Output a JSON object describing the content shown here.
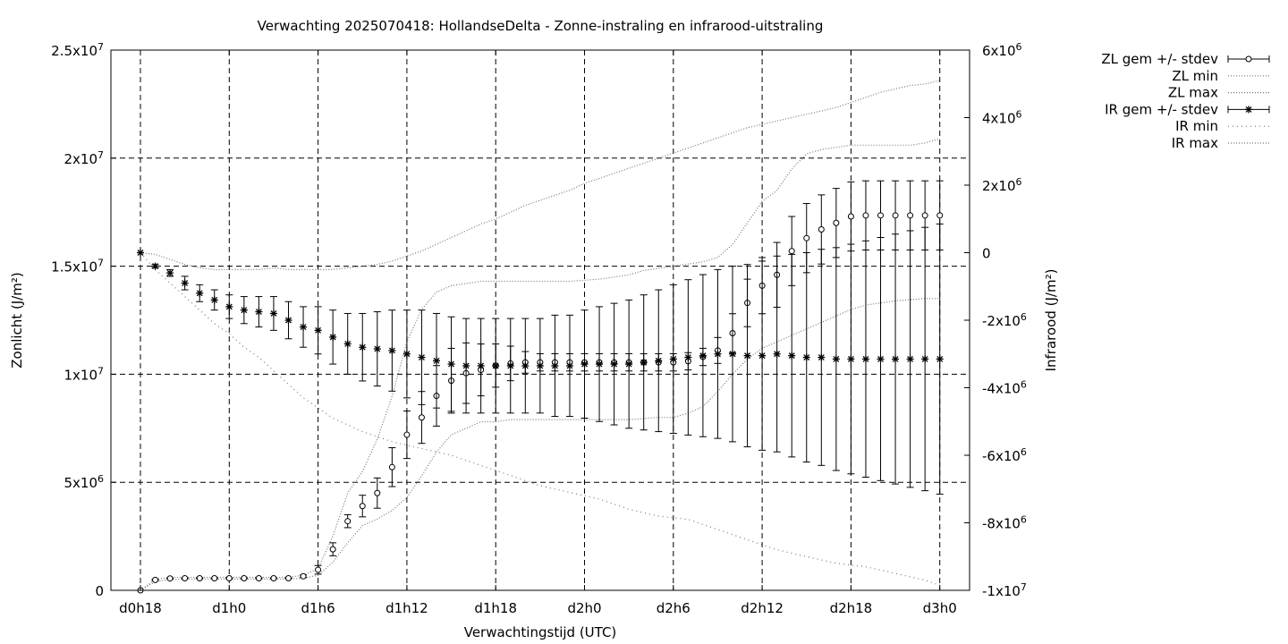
{
  "chart_data": {
    "type": "line",
    "title": "Verwachting 2025070418: HollandseDelta - Zonne-instraling en infrarood-uitstraling",
    "xlabel": "Verwachtingstijd (UTC)",
    "ylabel": "Zonlicht (J/m²)",
    "y2label": "Infrarood (J/m²)",
    "x_unit": "hours since d0h18",
    "x_range": [
      0,
      56
    ],
    "x_ticks": [
      {
        "x": 0,
        "label": "d0h18"
      },
      {
        "x": 6,
        "label": "d1h0"
      },
      {
        "x": 12,
        "label": "d1h6"
      },
      {
        "x": 18,
        "label": "d1h12"
      },
      {
        "x": 24,
        "label": "d1h18"
      },
      {
        "x": 30,
        "label": "d2h0"
      },
      {
        "x": 36,
        "label": "d2h6"
      },
      {
        "x": 42,
        "label": "d2h12"
      },
      {
        "x": 48,
        "label": "d2h18"
      },
      {
        "x": 54,
        "label": "d3h0"
      }
    ],
    "ylim": [
      0,
      25000000
    ],
    "y2lim": [
      -10000000,
      6000000
    ],
    "y_ticks": [
      {
        "v": 0,
        "m": "0",
        "e": ""
      },
      {
        "v": 5000000,
        "m": "5x10",
        "e": "6"
      },
      {
        "v": 10000000,
        "m": "1x10",
        "e": "7"
      },
      {
        "v": 15000000,
        "m": "1.5x10",
        "e": "7"
      },
      {
        "v": 20000000,
        "m": "2x10",
        "e": "7"
      },
      {
        "v": 25000000,
        "m": "2.5x10",
        "e": "7"
      }
    ],
    "y2_ticks": [
      {
        "v": -10000000,
        "m": "-1x10",
        "e": "7"
      },
      {
        "v": -8000000,
        "m": "-8x10",
        "e": "6"
      },
      {
        "v": -6000000,
        "m": "-6x10",
        "e": "6"
      },
      {
        "v": -4000000,
        "m": "-4x10",
        "e": "6"
      },
      {
        "v": -2000000,
        "m": "-2x10",
        "e": "6"
      },
      {
        "v": 0,
        "m": "0",
        "e": ""
      },
      {
        "v": 2000000,
        "m": "2x10",
        "e": "6"
      },
      {
        "v": 4000000,
        "m": "4x10",
        "e": "6"
      },
      {
        "v": 6000000,
        "m": "6x10",
        "e": "6"
      }
    ],
    "grid": true,
    "legend": "top-right",
    "legend_entries": [
      "ZL gem +/- stdev",
      "ZL min",
      "ZL max",
      "IR gem +/- stdev",
      "IR min",
      "IR max"
    ],
    "x": [
      0,
      1,
      2,
      3,
      4,
      5,
      6,
      7,
      8,
      9,
      10,
      11,
      12,
      13,
      14,
      15,
      16,
      17,
      18,
      19,
      20,
      21,
      22,
      23,
      24,
      25,
      26,
      27,
      28,
      29,
      30,
      31,
      32,
      33,
      34,
      35,
      36,
      37,
      38,
      39,
      40,
      41,
      42,
      43,
      44,
      45,
      46,
      47,
      48,
      49,
      50,
      51,
      52,
      53,
      54
    ],
    "zl_mean": [
      0,
      480000,
      550000,
      560000,
      560000,
      560000,
      560000,
      560000,
      560000,
      560000,
      560000,
      650000,
      950000,
      1900000,
      3200000,
      3900000,
      4500000,
      5700000,
      7200000,
      8000000,
      9000000,
      9700000,
      10050000,
      10200000,
      10400000,
      10500000,
      10550000,
      10550000,
      10550000,
      10550000,
      10550000,
      10550000,
      10550000,
      10550000,
      10550000,
      10550000,
      10550000,
      10600000,
      10800000,
      11100000,
      11900000,
      13300000,
      14100000,
      14600000,
      15700000,
      16300000,
      16700000,
      17000000,
      17300000,
      17350000,
      17350000,
      17350000,
      17350000,
      17350000,
      17350000
    ],
    "zl_sd": [
      0,
      30000,
      20000,
      20000,
      20000,
      20000,
      20000,
      20000,
      20000,
      20000,
      20000,
      60000,
      200000,
      300000,
      300000,
      500000,
      700000,
      900000,
      1100000,
      1200000,
      1400000,
      1500000,
      1400000,
      1200000,
      1000000,
      800000,
      500000,
      400000,
      400000,
      400000,
      400000,
      400000,
      400000,
      400000,
      400000,
      400000,
      400000,
      400000,
      400000,
      600000,
      900000,
      1100000,
      1300000,
      1500000,
      1600000,
      1600000,
      1600000,
      1600000,
      1600000,
      1600000,
      1600000,
      1600000,
      1600000,
      1600000,
      1600000
    ],
    "zl_min": [
      0,
      400000,
      500000,
      520000,
      520000,
      520000,
      520000,
      520000,
      520000,
      520000,
      520000,
      560000,
      700000,
      1300000,
      2200000,
      3000000,
      3300000,
      3700000,
      4300000,
      5300000,
      6400000,
      7200000,
      7500000,
      7800000,
      7800000,
      7900000,
      7900000,
      7900000,
      7900000,
      7900000,
      7900000,
      7900000,
      7900000,
      7900000,
      7950000,
      8000000,
      8000000,
      8200000,
      8500000,
      9200000,
      10000000,
      10700000,
      11200000,
      11500000,
      11800000,
      12100000,
      12400000,
      12700000,
      13000000,
      13200000,
      13300000,
      13400000,
      13450000,
      13500000,
      13500000
    ],
    "zl_max": [
      0,
      500000,
      600000,
      600000,
      600000,
      600000,
      600000,
      600000,
      600000,
      600000,
      600000,
      700000,
      1000000,
      2500000,
      4500000,
      5500000,
      7000000,
      9000000,
      11500000,
      13000000,
      13800000,
      14100000,
      14200000,
      14300000,
      14300000,
      14300000,
      14300000,
      14300000,
      14300000,
      14300000,
      14350000,
      14400000,
      14500000,
      14600000,
      14800000,
      14900000,
      15000000,
      15100000,
      15200000,
      15400000,
      16000000,
      17000000,
      18000000,
      18500000,
      19500000,
      20200000,
      20400000,
      20500000,
      20600000,
      20600000,
      20600000,
      20600000,
      20600000,
      20700000,
      20900000
    ],
    "ir_mean": [
      0,
      -400000,
      -600000,
      -900000,
      -1200000,
      -1400000,
      -1600000,
      -1700000,
      -1750000,
      -1800000,
      -2000000,
      -2200000,
      -2300000,
      -2500000,
      -2700000,
      -2800000,
      -2850000,
      -2900000,
      -3000000,
      -3100000,
      -3200000,
      -3300000,
      -3350000,
      -3350000,
      -3350000,
      -3350000,
      -3350000,
      -3350000,
      -3350000,
      -3350000,
      -3300000,
      -3300000,
      -3300000,
      -3300000,
      -3250000,
      -3200000,
      -3150000,
      -3100000,
      -3050000,
      -3000000,
      -3000000,
      -3050000,
      -3050000,
      -3000000,
      -3050000,
      -3100000,
      -3100000,
      -3150000,
      -3150000,
      -3150000,
      -3150000,
      -3150000,
      -3150000,
      -3150000,
      -3150000
    ],
    "ir_sd": [
      0,
      50000,
      100000,
      200000,
      250000,
      300000,
      350000,
      400000,
      450000,
      500000,
      550000,
      600000,
      700000,
      800000,
      900000,
      1000000,
      1100000,
      1200000,
      1300000,
      1400000,
      1400000,
      1400000,
      1400000,
      1400000,
      1400000,
      1400000,
      1400000,
      1400000,
      1500000,
      1500000,
      1600000,
      1700000,
      1800000,
      1900000,
      2000000,
      2100000,
      2200000,
      2300000,
      2400000,
      2500000,
      2600000,
      2700000,
      2800000,
      2900000,
      3000000,
      3100000,
      3200000,
      3300000,
      3400000,
      3500000,
      3600000,
      3700000,
      3800000,
      3900000,
      4000000
    ],
    "ir_min": [
      0,
      -500000,
      -900000,
      -1300000,
      -1700000,
      -2100000,
      -2400000,
      -2800000,
      -3100000,
      -3500000,
      -3900000,
      -4300000,
      -4600000,
      -4900000,
      -5100000,
      -5300000,
      -5450000,
      -5600000,
      -5700000,
      -5800000,
      -5900000,
      -6000000,
      -6150000,
      -6300000,
      -6450000,
      -6600000,
      -6750000,
      -6900000,
      -7000000,
      -7100000,
      -7200000,
      -7300000,
      -7450000,
      -7600000,
      -7700000,
      -7800000,
      -7850000,
      -7900000,
      -8050000,
      -8200000,
      -8350000,
      -8500000,
      -8650000,
      -8800000,
      -8900000,
      -9000000,
      -9100000,
      -9200000,
      -9250000,
      -9300000,
      -9400000,
      -9500000,
      -9600000,
      -9700000,
      -9850000
    ],
    "ir_max": [
      0,
      -50000,
      -200000,
      -350000,
      -450000,
      -500000,
      -500000,
      -500000,
      -500000,
      -450000,
      -500000,
      -500000,
      -500000,
      -500000,
      -450000,
      -400000,
      -350000,
      -250000,
      -100000,
      50000,
      250000,
      450000,
      650000,
      850000,
      1000000,
      1200000,
      1400000,
      1550000,
      1700000,
      1850000,
      2050000,
      2200000,
      2350000,
      2500000,
      2650000,
      2800000,
      2950000,
      3100000,
      3250000,
      3400000,
      3550000,
      3700000,
      3800000,
      3900000,
      4000000,
      4100000,
      4200000,
      4300000,
      4450000,
      4600000,
      4750000,
      4850000,
      4950000,
      5000000,
      5100000
    ]
  }
}
